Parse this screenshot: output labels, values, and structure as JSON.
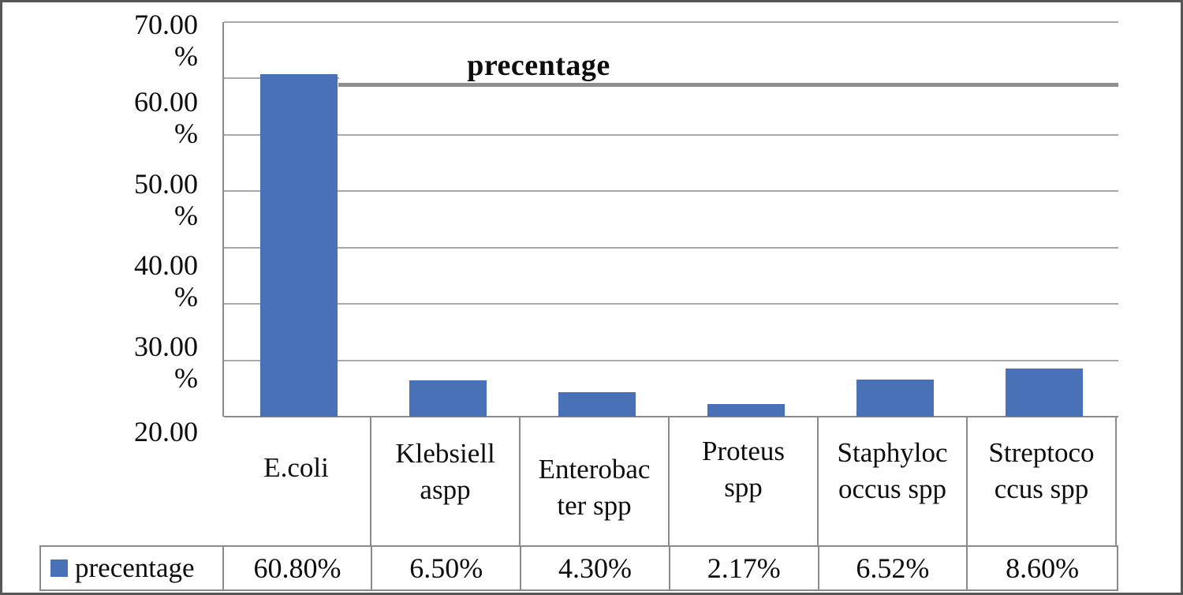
{
  "chart_data": {
    "type": "bar",
    "title": "precentage",
    "categories": [
      "E.coli",
      "Klebsiell aspp",
      "Enterobac ter spp",
      "Proteus spp",
      "Staphyloc occus spp",
      "Streptoco ccus spp"
    ],
    "category_label_lines": [
      [
        "E.coli"
      ],
      [
        "Klebsiell",
        "aspp"
      ],
      [
        "Enterobac",
        "ter spp"
      ],
      [
        "Proteus",
        "spp"
      ],
      [
        "Staphyloc",
        "occus spp"
      ],
      [
        "Streptoco",
        "ccus spp"
      ]
    ],
    "series": [
      {
        "name": "precentage",
        "values": [
          60.8,
          6.5,
          4.3,
          2.17,
          6.52,
          8.6
        ]
      }
    ],
    "value_labels": [
      "60.80%",
      "6.50%",
      "4.30%",
      "2.17%",
      "6.52%",
      "8.60%"
    ],
    "y_tick_lines": [
      [
        "70.00",
        "%"
      ],
      [
        "60.00",
        "%"
      ],
      [
        "50.00",
        "%"
      ],
      [
        "40.00",
        "%"
      ],
      [
        "30.00",
        "%"
      ],
      [
        "20.00"
      ]
    ],
    "gridline_values": [
      70,
      60,
      50,
      40,
      30,
      20,
      10,
      0
    ],
    "ylim": [
      0,
      70
    ],
    "xlabel": "",
    "ylabel": "",
    "grid": true,
    "legend": {
      "label": "precentage",
      "position": "bottom-table"
    },
    "colors": {
      "bar": "#4871B8",
      "legend_swatch": "#4871B8",
      "gridline": "#a9a9a9",
      "table_border": "#8a8a8a"
    }
  }
}
